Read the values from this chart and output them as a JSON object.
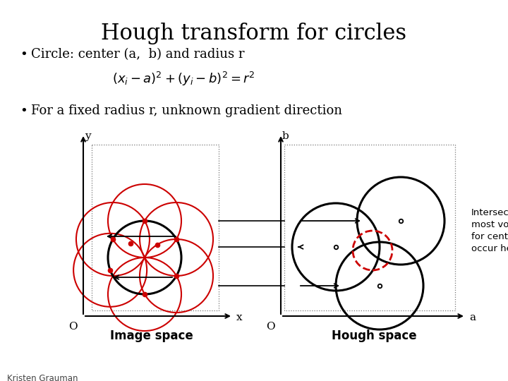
{
  "title": "Hough transform for circles",
  "bullet1": "Circle: center (a,  b) and radius r",
  "bullet2": "For a fixed radius r, unknown gradient direction",
  "image_space_label": "Image space",
  "hough_space_label": "Hough space",
  "intersection_text": "Intersection:\nmost votes\nfor center\noccur here.",
  "bg_color": "#ffffff",
  "red_color": "#cc0000",
  "black_color": "#000000",
  "author": "Kristen Grauman",
  "title_fontsize": 22,
  "bullet_fontsize": 13,
  "label_fontsize": 12
}
